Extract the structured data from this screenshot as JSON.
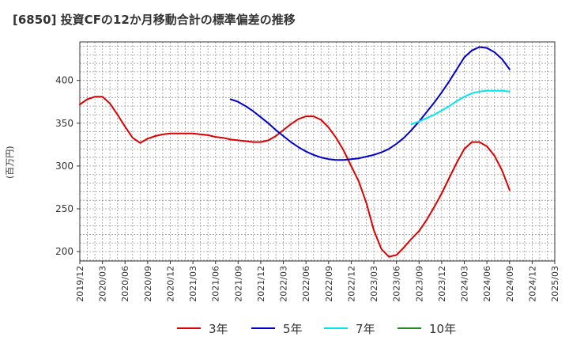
{
  "title": "[6850]  投資CFの12か月移動合計の標準偏差の推移",
  "unit_label": "(百万円)",
  "colors": {
    "plot_border": "#333333",
    "grid": "#999999",
    "background": "#ffffff"
  },
  "chart_data": {
    "type": "line",
    "title": "[6850]  投資CFの12か月移動合計の標準偏差の推移",
    "ylabel": "(百万円)",
    "xlabel": "",
    "ylim": [
      189,
      445
    ],
    "y_ticks": [
      200,
      250,
      300,
      350,
      400
    ],
    "x_range": [
      "2019-12",
      "2025-03"
    ],
    "x_ticks": [
      "2019/12",
      "2020/03",
      "2020/06",
      "2020/09",
      "2020/12",
      "2021/03",
      "2021/06",
      "2021/09",
      "2021/12",
      "2022/03",
      "2022/06",
      "2022/09",
      "2022/12",
      "2023/03",
      "2023/06",
      "2023/09",
      "2023/12",
      "2024/03",
      "2024/06",
      "2024/09",
      "2024/12",
      "2025/03"
    ],
    "grid": true,
    "legend_position": "bottom",
    "series": [
      {
        "name": "3年",
        "color": "#dd0000",
        "points": [
          [
            "2019-12",
            372
          ],
          [
            "2020-01",
            378
          ],
          [
            "2020-02",
            381
          ],
          [
            "2020-03",
            381
          ],
          [
            "2020-04",
            373
          ],
          [
            "2020-05",
            360
          ],
          [
            "2020-06",
            346
          ],
          [
            "2020-07",
            333
          ],
          [
            "2020-08",
            327
          ],
          [
            "2020-09",
            332
          ],
          [
            "2020-10",
            335
          ],
          [
            "2020-11",
            337
          ],
          [
            "2020-12",
            338
          ],
          [
            "2021-01",
            338
          ],
          [
            "2021-02",
            338
          ],
          [
            "2021-03",
            338
          ],
          [
            "2021-04",
            337
          ],
          [
            "2021-05",
            336
          ],
          [
            "2021-06",
            334
          ],
          [
            "2021-07",
            333
          ],
          [
            "2021-08",
            331
          ],
          [
            "2021-09",
            330
          ],
          [
            "2021-10",
            329
          ],
          [
            "2021-11",
            328
          ],
          [
            "2021-12",
            328
          ],
          [
            "2022-01",
            330
          ],
          [
            "2022-02",
            335
          ],
          [
            "2022-03",
            342
          ],
          [
            "2022-04",
            349
          ],
          [
            "2022-05",
            355
          ],
          [
            "2022-06",
            358
          ],
          [
            "2022-07",
            358
          ],
          [
            "2022-08",
            354
          ],
          [
            "2022-09",
            345
          ],
          [
            "2022-10",
            333
          ],
          [
            "2022-11",
            318
          ],
          [
            "2022-12",
            300
          ],
          [
            "2023-01",
            282
          ],
          [
            "2023-02",
            257
          ],
          [
            "2023-03",
            225
          ],
          [
            "2023-04",
            203
          ],
          [
            "2023-05",
            194
          ],
          [
            "2023-06",
            196
          ],
          [
            "2023-07",
            205
          ],
          [
            "2023-08",
            215
          ],
          [
            "2023-09",
            224
          ],
          [
            "2023-10",
            237
          ],
          [
            "2023-11",
            252
          ],
          [
            "2023-12",
            268
          ],
          [
            "2024-01",
            286
          ],
          [
            "2024-02",
            304
          ],
          [
            "2024-03",
            320
          ],
          [
            "2024-04",
            328
          ],
          [
            "2024-05",
            328
          ],
          [
            "2024-06",
            323
          ],
          [
            "2024-07",
            312
          ],
          [
            "2024-08",
            295
          ],
          [
            "2024-09",
            272
          ]
        ]
      },
      {
        "name": "5年",
        "color": "#0000cc",
        "points": [
          [
            "2021-08",
            378
          ],
          [
            "2021-09",
            375
          ],
          [
            "2021-10",
            370
          ],
          [
            "2021-11",
            364
          ],
          [
            "2021-12",
            357
          ],
          [
            "2022-01",
            350
          ],
          [
            "2022-02",
            342
          ],
          [
            "2022-03",
            335
          ],
          [
            "2022-04",
            328
          ],
          [
            "2022-05",
            322
          ],
          [
            "2022-06",
            317
          ],
          [
            "2022-07",
            313
          ],
          [
            "2022-08",
            310
          ],
          [
            "2022-09",
            308
          ],
          [
            "2022-10",
            307
          ],
          [
            "2022-11",
            307
          ],
          [
            "2022-12",
            308
          ],
          [
            "2023-01",
            309
          ],
          [
            "2023-02",
            311
          ],
          [
            "2023-03",
            313
          ],
          [
            "2023-04",
            316
          ],
          [
            "2023-05",
            320
          ],
          [
            "2023-06",
            326
          ],
          [
            "2023-07",
            333
          ],
          [
            "2023-08",
            342
          ],
          [
            "2023-09",
            352
          ],
          [
            "2023-10",
            363
          ],
          [
            "2023-11",
            374
          ],
          [
            "2023-12",
            386
          ],
          [
            "2024-01",
            399
          ],
          [
            "2024-02",
            413
          ],
          [
            "2024-03",
            427
          ],
          [
            "2024-04",
            435
          ],
          [
            "2024-05",
            439
          ],
          [
            "2024-06",
            438
          ],
          [
            "2024-07",
            433
          ],
          [
            "2024-08",
            425
          ],
          [
            "2024-09",
            413
          ]
        ]
      },
      {
        "name": "7年",
        "color": "#00e5ee",
        "points": [
          [
            "2023-08",
            349
          ],
          [
            "2023-09",
            352
          ],
          [
            "2023-10",
            356
          ],
          [
            "2023-11",
            360
          ],
          [
            "2023-12",
            365
          ],
          [
            "2024-01",
            370
          ],
          [
            "2024-02",
            376
          ],
          [
            "2024-03",
            381
          ],
          [
            "2024-04",
            385
          ],
          [
            "2024-05",
            387
          ],
          [
            "2024-06",
            388
          ],
          [
            "2024-07",
            388
          ],
          [
            "2024-08",
            388
          ],
          [
            "2024-09",
            387
          ]
        ]
      },
      {
        "name": "10年",
        "color": "#228b22",
        "points": []
      }
    ]
  }
}
